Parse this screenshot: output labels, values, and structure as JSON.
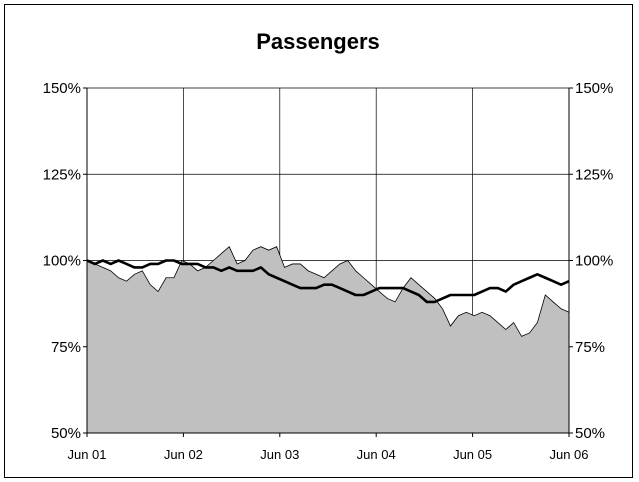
{
  "chart_data": {
    "type": "area",
    "title": "Passengers",
    "xlabel": "",
    "ylabel": "",
    "ylim": [
      50,
      150
    ],
    "y_ticks": [
      "50%",
      "75%",
      "100%",
      "125%",
      "150%"
    ],
    "y_tick_values": [
      50,
      75,
      100,
      125,
      150
    ],
    "x_ticks": [
      "Jun 01",
      "Jun 02",
      "Jun 03",
      "Jun 04",
      "Jun 05",
      "Jun 06"
    ],
    "x_tick_values": [
      0,
      12,
      24,
      36,
      48,
      60
    ],
    "xlim": [
      0,
      60
    ],
    "grid": true,
    "legend": "none",
    "colors": {
      "area": "#c0c0c0",
      "line": "#000000",
      "grid": "#000000"
    },
    "series": [
      {
        "type": "area",
        "values": [
          100,
          99,
          98,
          97,
          95,
          94,
          96,
          97,
          93,
          91,
          95,
          95,
          100,
          99,
          97,
          98,
          100,
          102,
          104,
          99,
          100,
          103,
          104,
          103,
          104,
          98,
          99,
          99,
          97,
          96,
          95,
          97,
          99,
          100,
          97,
          95,
          93,
          91,
          89,
          88,
          92,
          95,
          93,
          91,
          89,
          86,
          81,
          84,
          85,
          84,
          85,
          84,
          82,
          80,
          82,
          78,
          79,
          82,
          90,
          88,
          86,
          85
        ]
      },
      {
        "type": "line",
        "values": [
          100,
          99,
          100,
          99,
          100,
          99,
          98,
          98,
          99,
          99,
          100,
          100,
          99,
          99,
          99,
          98,
          98,
          97,
          98,
          97,
          97,
          97,
          98,
          96,
          95,
          94,
          93,
          92,
          92,
          92,
          93,
          93,
          92,
          91,
          90,
          90,
          91,
          92,
          92,
          92,
          92,
          91,
          90,
          88,
          88,
          89,
          90,
          90,
          90,
          90,
          91,
          92,
          92,
          91,
          93,
          94,
          95,
          96,
          95,
          94,
          93,
          94
        ]
      }
    ]
  }
}
